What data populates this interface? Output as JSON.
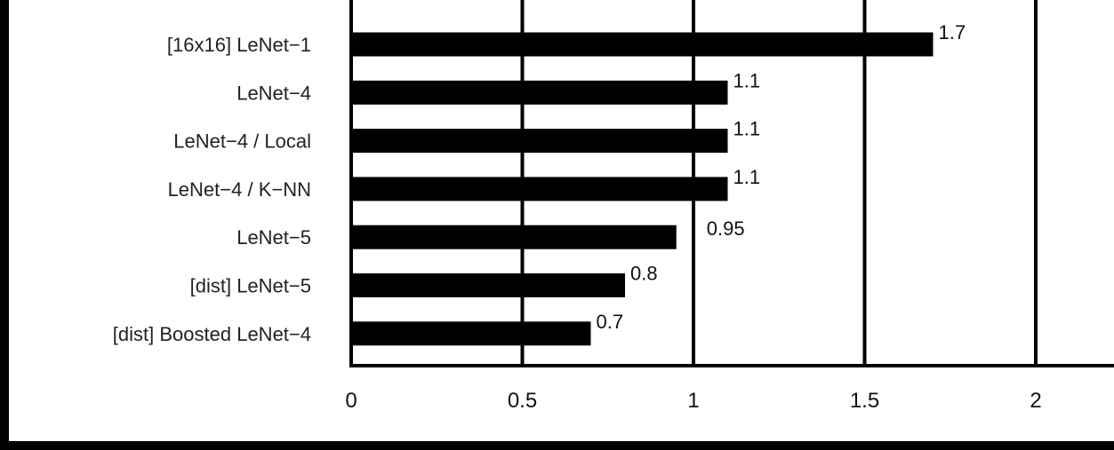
{
  "chart_data": {
    "type": "bar",
    "orientation": "horizontal",
    "categories": [
      "[16x16] LeNet−1",
      "LeNet−4",
      "LeNet−4 / Local",
      "LeNet−4 / K−NN",
      "LeNet−5",
      "[dist] LeNet−5",
      "[dist] Boosted LeNet−4"
    ],
    "values": [
      1.7,
      1.1,
      1.1,
      1.1,
      0.95,
      0.8,
      0.7
    ],
    "value_labels": [
      "1.7",
      "1.1",
      "1.1",
      "1.1",
      "0.95",
      "0.8",
      "0.7"
    ],
    "x_ticks": [
      0,
      0.5,
      1,
      1.5,
      2
    ],
    "x_tick_labels": [
      "0",
      "0.5",
      "1",
      "1.5",
      "2"
    ],
    "xlim": [
      0,
      2.25
    ],
    "grid": "vertical",
    "title": "",
    "xlabel": "",
    "ylabel": "",
    "colors": {
      "bar": "#000000",
      "grid": "#000000",
      "background": "#ffffff",
      "frame": "#000000"
    }
  }
}
